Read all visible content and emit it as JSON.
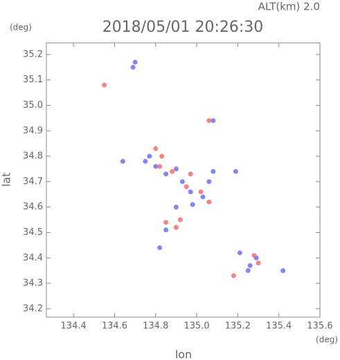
{
  "chart_data": {
    "type": "scatter",
    "title": "2018/05/01 20:26:30",
    "subtitle": "ALT(km) 2.0",
    "x_label": "lon",
    "y_label": "lat",
    "x_unit": "(deg)",
    "y_unit": "(deg)",
    "xlim": [
      134.268,
      135.6
    ],
    "ylim": [
      34.167,
      35.246
    ],
    "xticks": [
      134.4,
      134.6,
      134.8,
      {
        "value": 135,
        "label": "135.0"
      },
      135.2,
      135.4,
      135.6
    ],
    "yticks": [
      34.2,
      34.3,
      34.4,
      34.5,
      34.6,
      34.7,
      34.8,
      34.9,
      {
        "value": 35,
        "label": "35.0"
      },
      35.1,
      35.2
    ],
    "series": [
      {
        "color": "#7070f0",
        "x": [
          134.7,
          134.69,
          134.64,
          134.77,
          134.8,
          134.85,
          134.9,
          134.93,
          134.97,
          135.03,
          135.06,
          135.08,
          134.9,
          134.98,
          134.85,
          134.82,
          135.19,
          135.08,
          135.26,
          135.29,
          135.25,
          135.42,
          135.21,
          134.75
        ],
        "values": [
          35.17,
          35.15,
          34.78,
          34.8,
          34.76,
          34.73,
          34.75,
          34.7,
          34.66,
          34.64,
          34.7,
          34.74,
          34.6,
          34.61,
          34.51,
          34.44,
          34.74,
          34.94,
          34.37,
          34.4,
          34.35,
          34.35,
          34.42,
          34.78
        ]
      },
      {
        "color": "#f07070",
        "x": [
          134.55,
          135.06,
          134.8,
          134.82,
          134.88,
          134.95,
          135.02,
          135.06,
          134.85,
          134.9,
          134.92,
          135.18,
          135.3,
          135.28,
          134.97,
          134.83
        ],
        "values": [
          35.08,
          34.94,
          34.83,
          34.76,
          34.74,
          34.68,
          34.66,
          34.62,
          34.54,
          34.52,
          34.55,
          34.33,
          34.38,
          34.41,
          34.73,
          34.8
        ]
      }
    ]
  }
}
